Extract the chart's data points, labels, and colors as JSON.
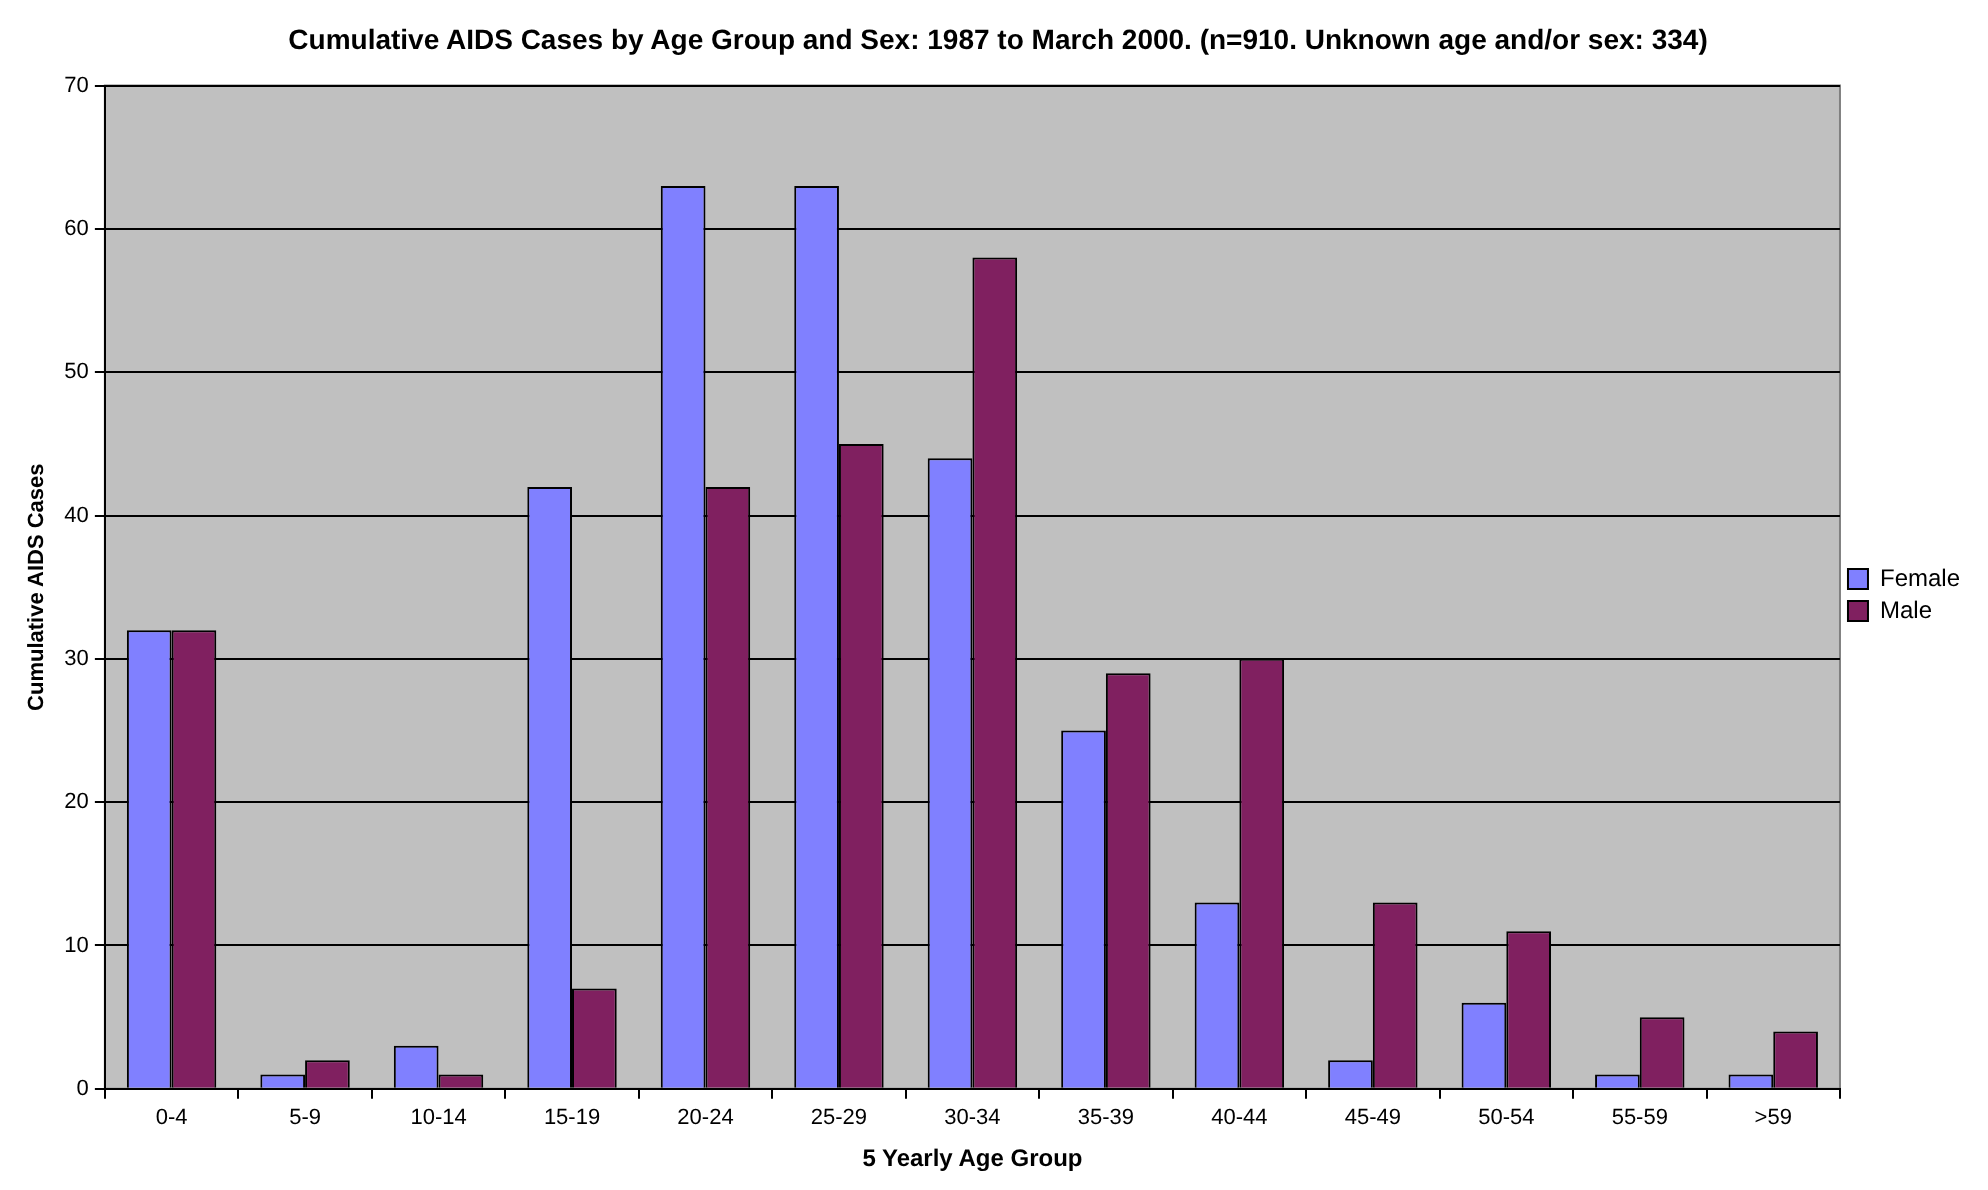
{
  "chart_data": {
    "type": "bar",
    "title": "Cumulative AIDS Cases by Age Group and Sex: 1987 to March 2000. (n=910. Unknown age and/or sex: 334)",
    "xlabel": "5 Yearly Age Group",
    "ylabel": "Cumulative AIDS Cases",
    "categories": [
      "0-4",
      "5-9",
      "10-14",
      "15-19",
      "20-24",
      "25-29",
      "30-34",
      "35-39",
      "40-44",
      "45-49",
      "50-54",
      "55-59",
      ">59"
    ],
    "series": [
      {
        "name": "Female",
        "color": "#8080ff",
        "values": [
          32,
          1,
          3,
          42,
          63,
          63,
          44,
          25,
          13,
          2,
          6,
          1,
          1
        ]
      },
      {
        "name": "Male",
        "color": "#802060",
        "values": [
          32,
          2,
          1,
          7,
          42,
          45,
          58,
          29,
          30,
          13,
          11,
          5,
          4
        ]
      }
    ],
    "ylim": [
      0,
      70
    ],
    "yticks": [
      0,
      10,
      20,
      30,
      40,
      50,
      60,
      70
    ],
    "grid": "y",
    "legend": "right"
  }
}
